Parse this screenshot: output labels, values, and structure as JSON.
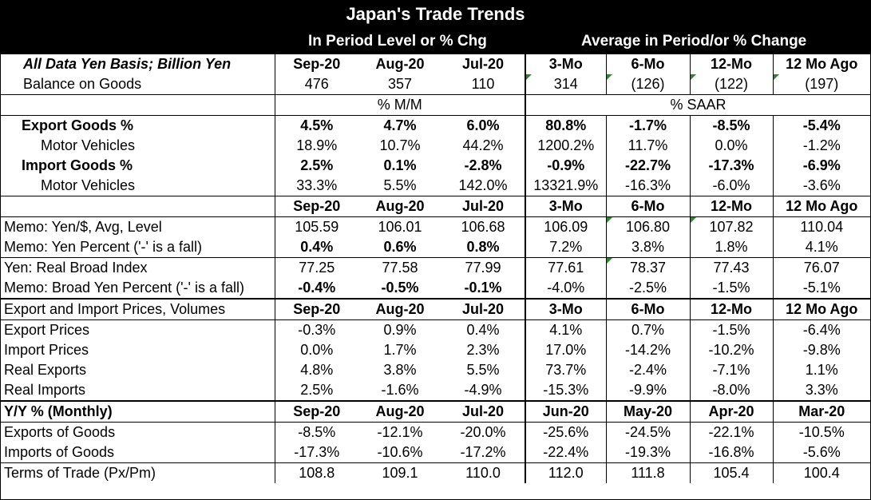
{
  "title": "Japan's Trade Trends",
  "subheader": {
    "left": "In Period Level or % Chg",
    "right": "Average in Period/or % Change"
  },
  "header_row": {
    "label": "All Data Yen Basis; Billion Yen",
    "cols": [
      "Sep-20",
      "Aug-20",
      "Jul-20",
      "3-Mo",
      "6-Mo",
      "12-Mo",
      "12 Mo Ago"
    ]
  },
  "balance": {
    "label": "Balance on Goods",
    "values": [
      "476",
      "357",
      "110",
      "314",
      "(126)",
      "(122)",
      "(197)"
    ]
  },
  "units": {
    "left": "% M/M",
    "right": "% SAAR"
  },
  "export_goods": {
    "label": "Export Goods %",
    "values": [
      "4.5%",
      "4.7%",
      "6.0%",
      "80.8%",
      "-1.7%",
      "-8.5%",
      "-5.4%"
    ]
  },
  "export_mv": {
    "label": "Motor Vehicles",
    "values": [
      "18.9%",
      "10.7%",
      "44.2%",
      "1200.2%",
      "11.7%",
      "0.0%",
      "-1.2%"
    ]
  },
  "import_goods": {
    "label": "Import Goods %",
    "values": [
      "2.5%",
      "0.1%",
      "-2.8%",
      "-0.9%",
      "-22.7%",
      "-17.3%",
      "-6.9%"
    ]
  },
  "import_mv": {
    "label": "Motor Vehicles",
    "values": [
      "33.3%",
      "5.5%",
      "142.0%",
      "13321.9%",
      "-16.3%",
      "-6.0%",
      "-3.6%"
    ]
  },
  "header2": {
    "cols": [
      "Sep-20",
      "Aug-20",
      "Jul-20",
      "3-Mo",
      "6-Mo",
      "12-Mo",
      "12 Mo Ago"
    ]
  },
  "yen_level": {
    "label": "Memo: Yen/$, Avg, Level",
    "values": [
      "105.59",
      "106.01",
      "106.68",
      "106.09",
      "106.80",
      "107.82",
      "110.04"
    ]
  },
  "yen_pct": {
    "label": "Memo: Yen Percent ('-' is a fall)",
    "values": [
      "0.4%",
      "0.6%",
      "0.8%",
      "7.2%",
      "3.8%",
      "1.8%",
      "4.1%"
    ]
  },
  "real_broad": {
    "label": "Yen: Real Broad Index",
    "values": [
      "77.25",
      "77.58",
      "77.99",
      "77.61",
      "78.37",
      "77.43",
      "76.07"
    ]
  },
  "broad_pct": {
    "label": "Memo: Broad Yen Percent ('-' is a fall)",
    "values": [
      "-0.4%",
      "-0.5%",
      "-0.1%",
      "-4.0%",
      "-2.5%",
      "-1.5%",
      "-5.1%"
    ]
  },
  "header3": {
    "label": "Export and Import Prices, Volumes",
    "cols": [
      "Sep-20",
      "Aug-20",
      "Jul-20",
      "3-Mo",
      "6-Mo",
      "12-Mo",
      "12 Mo Ago"
    ]
  },
  "export_prices": {
    "label": "Export Prices",
    "values": [
      "-0.3%",
      "0.9%",
      "0.4%",
      "4.1%",
      "0.7%",
      "-1.5%",
      "-6.4%"
    ]
  },
  "import_prices": {
    "label": "Import Prices",
    "values": [
      "0.0%",
      "1.7%",
      "2.3%",
      "17.0%",
      "-14.2%",
      "-10.2%",
      "-9.8%"
    ]
  },
  "real_exports": {
    "label": "Real Exports",
    "values": [
      "4.8%",
      "3.8%",
      "5.5%",
      "73.7%",
      "-2.4%",
      "-7.1%",
      "1.1%"
    ]
  },
  "real_imports": {
    "label": "Real Imports",
    "values": [
      "2.5%",
      "-1.6%",
      "-4.9%",
      "-15.3%",
      "-9.9%",
      "-8.0%",
      "3.3%"
    ]
  },
  "header4": {
    "label": "Y/Y % (Monthly)",
    "cols": [
      "Sep-20",
      "Aug-20",
      "Jul-20",
      "Jun-20",
      "May-20",
      "Apr-20",
      "Mar-20"
    ]
  },
  "exports_goods_yy": {
    "label": "Exports of Goods",
    "values": [
      "-8.5%",
      "-12.1%",
      "-20.0%",
      "-25.6%",
      "-24.5%",
      "-22.1%",
      "-10.5%"
    ]
  },
  "imports_goods_yy": {
    "label": "Imports of Goods",
    "values": [
      "-17.3%",
      "-10.6%",
      "-17.2%",
      "-22.4%",
      "-19.3%",
      "-16.8%",
      "-5.6%"
    ]
  },
  "terms_of_trade": {
    "label": "Terms of Trade (Px/Pm)",
    "values": [
      "108.8",
      "109.1",
      "110.0",
      "112.0",
      "111.8",
      "105.4",
      "100.4"
    ]
  }
}
